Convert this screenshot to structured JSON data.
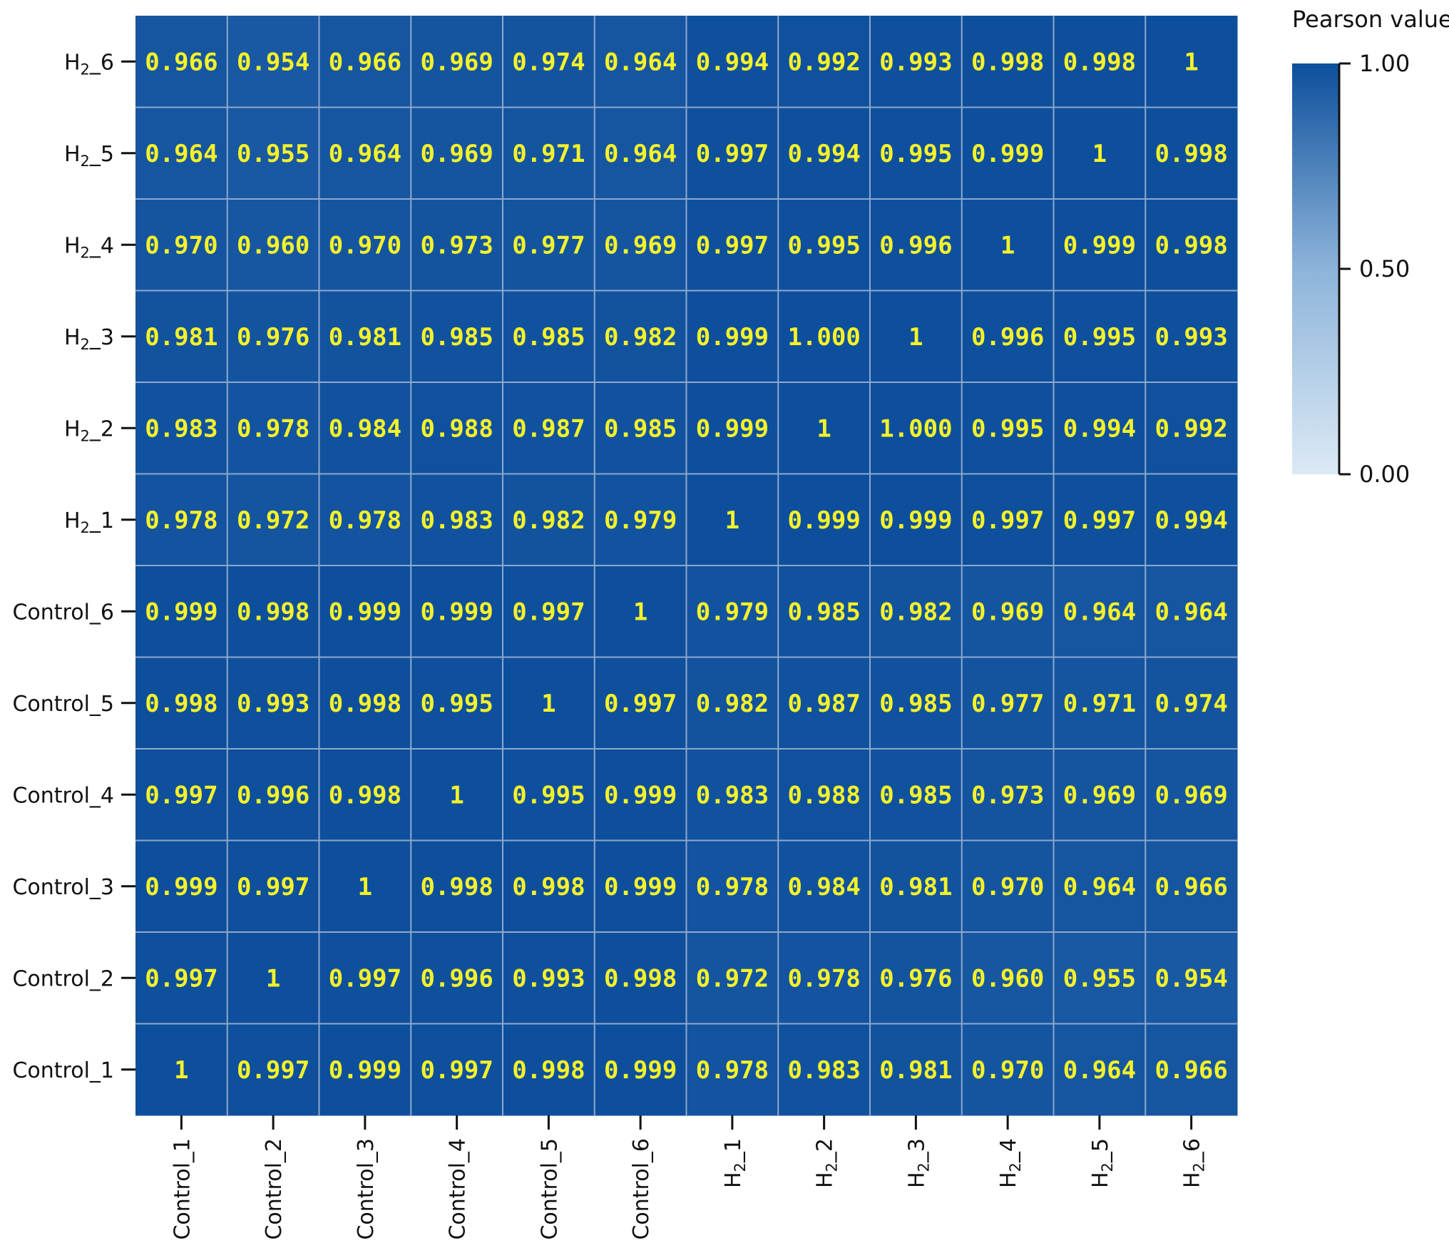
{
  "chart_data": {
    "type": "heatmap",
    "x_labels": [
      {
        "pre": "Control_1",
        "sub": "",
        "post": ""
      },
      {
        "pre": "Control_2",
        "sub": "",
        "post": ""
      },
      {
        "pre": "Control_3",
        "sub": "",
        "post": ""
      },
      {
        "pre": "Control_4",
        "sub": "",
        "post": ""
      },
      {
        "pre": "Control_5",
        "sub": "",
        "post": ""
      },
      {
        "pre": "Control_6",
        "sub": "",
        "post": ""
      },
      {
        "pre": "H",
        "sub": "2",
        "post": "_1"
      },
      {
        "pre": "H",
        "sub": "2",
        "post": "_2"
      },
      {
        "pre": "H",
        "sub": "2",
        "post": "_3"
      },
      {
        "pre": "H",
        "sub": "2",
        "post": "_4"
      },
      {
        "pre": "H",
        "sub": "2",
        "post": "_5"
      },
      {
        "pre": "H",
        "sub": "2",
        "post": "_6"
      }
    ],
    "y_labels": [
      {
        "pre": "Control_1",
        "sub": "",
        "post": ""
      },
      {
        "pre": "Control_2",
        "sub": "",
        "post": ""
      },
      {
        "pre": "Control_3",
        "sub": "",
        "post": ""
      },
      {
        "pre": "Control_4",
        "sub": "",
        "post": ""
      },
      {
        "pre": "Control_5",
        "sub": "",
        "post": ""
      },
      {
        "pre": "Control_6",
        "sub": "",
        "post": ""
      },
      {
        "pre": "H",
        "sub": "2",
        "post": "_1"
      },
      {
        "pre": "H",
        "sub": "2",
        "post": "_2"
      },
      {
        "pre": "H",
        "sub": "2",
        "post": "_3"
      },
      {
        "pre": "H",
        "sub": "2",
        "post": "_4"
      },
      {
        "pre": "H",
        "sub": "2",
        "post": "_5"
      },
      {
        "pre": "H",
        "sub": "2",
        "post": "_6"
      }
    ],
    "cell_labels": [
      [
        "1",
        "0.997",
        "0.999",
        "0.997",
        "0.998",
        "0.999",
        "0.978",
        "0.983",
        "0.981",
        "0.970",
        "0.964",
        "0.966"
      ],
      [
        "0.997",
        "1",
        "0.997",
        "0.996",
        "0.993",
        "0.998",
        "0.972",
        "0.978",
        "0.976",
        "0.960",
        "0.955",
        "0.954"
      ],
      [
        "0.999",
        "0.997",
        "1",
        "0.998",
        "0.998",
        "0.999",
        "0.978",
        "0.984",
        "0.981",
        "0.970",
        "0.964",
        "0.966"
      ],
      [
        "0.997",
        "0.996",
        "0.998",
        "1",
        "0.995",
        "0.999",
        "0.983",
        "0.988",
        "0.985",
        "0.973",
        "0.969",
        "0.969"
      ],
      [
        "0.998",
        "0.993",
        "0.998",
        "0.995",
        "1",
        "0.997",
        "0.982",
        "0.987",
        "0.985",
        "0.977",
        "0.971",
        "0.974"
      ],
      [
        "0.999",
        "0.998",
        "0.999",
        "0.999",
        "0.997",
        "1",
        "0.979",
        "0.985",
        "0.982",
        "0.969",
        "0.964",
        "0.964"
      ],
      [
        "0.978",
        "0.972",
        "0.978",
        "0.983",
        "0.982",
        "0.979",
        "1",
        "0.999",
        "0.999",
        "0.997",
        "0.997",
        "0.994"
      ],
      [
        "0.983",
        "0.978",
        "0.984",
        "0.988",
        "0.987",
        "0.985",
        "0.999",
        "1",
        "1.000",
        "0.995",
        "0.994",
        "0.992"
      ],
      [
        "0.981",
        "0.976",
        "0.981",
        "0.985",
        "0.985",
        "0.982",
        "0.999",
        "1.000",
        "1",
        "0.996",
        "0.995",
        "0.993"
      ],
      [
        "0.970",
        "0.960",
        "0.970",
        "0.973",
        "0.977",
        "0.969",
        "0.997",
        "0.995",
        "0.996",
        "1",
        "0.999",
        "0.998"
      ],
      [
        "0.964",
        "0.955",
        "0.964",
        "0.969",
        "0.971",
        "0.964",
        "0.997",
        "0.994",
        "0.995",
        "0.999",
        "1",
        "0.998"
      ],
      [
        "0.966",
        "0.954",
        "0.966",
        "0.969",
        "0.974",
        "0.964",
        "0.994",
        "0.992",
        "0.993",
        "0.998",
        "0.998",
        "1"
      ]
    ],
    "row_order": "bottom-to-top",
    "colorbar": {
      "title": "Pearson value",
      "range": [
        0,
        1
      ],
      "ticks": [
        "1.00",
        "0.50",
        "0.00"
      ],
      "colors": [
        "#dce9f5",
        "#8db4da",
        "#0d4f9c"
      ]
    },
    "annotation_color": "#f5f22a",
    "gridline_color": "#8fa8cc"
  }
}
